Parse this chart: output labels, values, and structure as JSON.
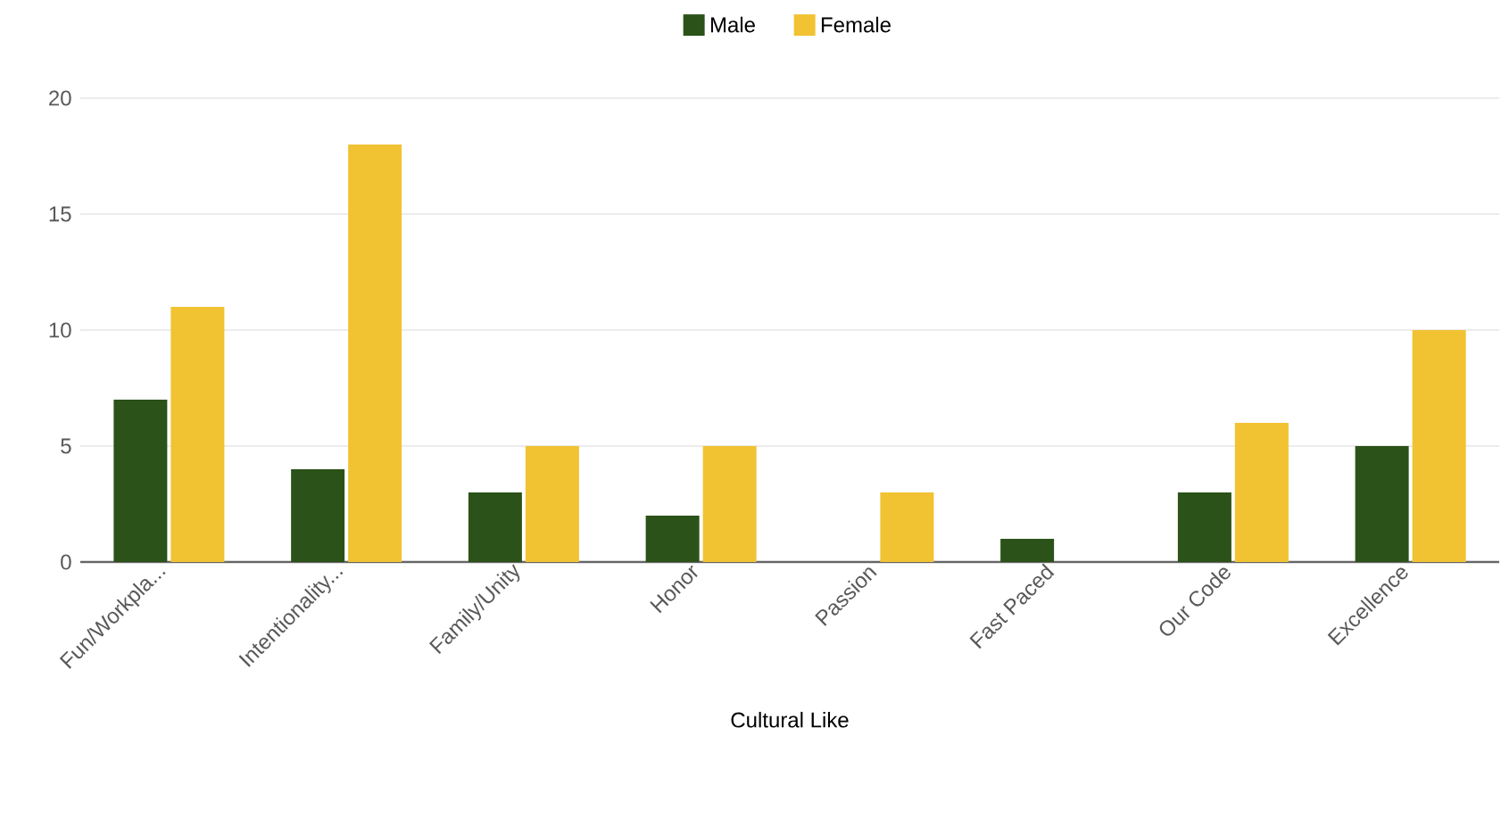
{
  "chart_data": {
    "type": "bar",
    "xlabel": "Cultural Like",
    "categories": [
      "Fun/Workpla...",
      "Intentionality...",
      "Family/Unity",
      "Honor",
      "Passion",
      "Fast Paced",
      "Our Code",
      "Excellence"
    ],
    "series": [
      {
        "name": "Male",
        "color": "#2b5218",
        "values": [
          7,
          4,
          3,
          2,
          0,
          1,
          3,
          5
        ]
      },
      {
        "name": "Female",
        "color": "#f1c232",
        "values": [
          11,
          18,
          5,
          5,
          3,
          0,
          6,
          10
        ]
      }
    ],
    "ylim": [
      0,
      20
    ],
    "yticks": [
      0,
      5,
      10,
      15,
      20
    ],
    "grid": "y",
    "legend": "top"
  }
}
